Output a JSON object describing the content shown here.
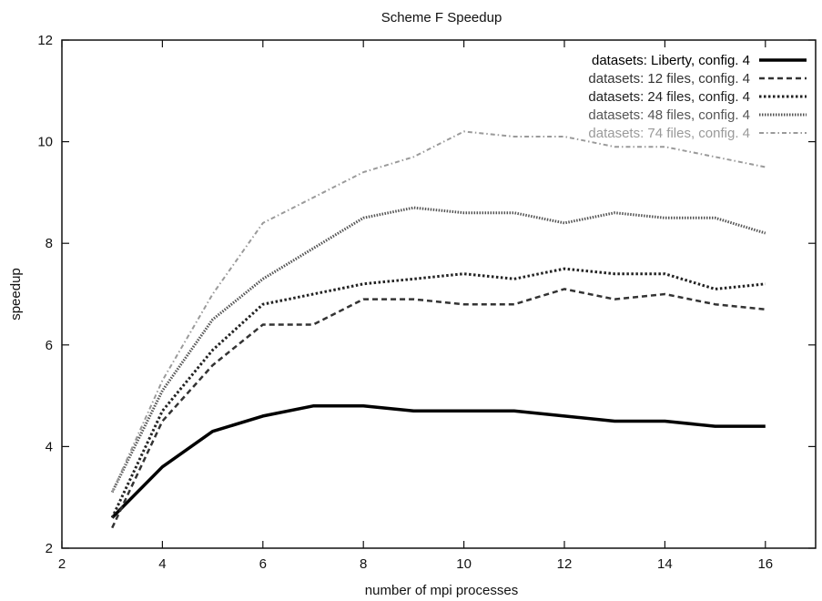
{
  "chart_data": {
    "type": "line",
    "title": "Scheme F Speedup",
    "xlabel": "number of mpi processes",
    "ylabel": "speedup",
    "xlim": [
      2,
      17
    ],
    "ylim": [
      2,
      12
    ],
    "xticks": [
      "2",
      "4",
      "6",
      "8",
      "10",
      "12",
      "14",
      "16"
    ],
    "yticks": [
      "2",
      "4",
      "6",
      "8",
      "10",
      "12"
    ],
    "grid": false,
    "legend_position": "top-right",
    "x": [
      3,
      4,
      5,
      6,
      7,
      8,
      9,
      10,
      11,
      12,
      13,
      14,
      15,
      16
    ],
    "series": [
      {
        "name": "datasets: Liberty, config. 4",
        "color": "#000000",
        "style": "solid",
        "values": [
          2.6,
          3.6,
          4.3,
          4.6,
          4.8,
          4.8,
          4.7,
          4.7,
          4.7,
          4.6,
          4.5,
          4.5,
          4.4,
          4.4
        ]
      },
      {
        "name": "datasets: 12 files, config. 4",
        "color": "#333333",
        "style": "dashed",
        "values": [
          2.4,
          4.5,
          5.6,
          6.4,
          6.4,
          6.9,
          6.9,
          6.8,
          6.8,
          7.1,
          6.9,
          7.0,
          6.8,
          6.7
        ]
      },
      {
        "name": "datasets: 24 files, config. 4",
        "color": "#222222",
        "style": "dotted",
        "values": [
          2.6,
          4.7,
          5.9,
          6.8,
          7.0,
          7.2,
          7.3,
          7.4,
          7.3,
          7.5,
          7.4,
          7.4,
          7.1,
          7.2
        ]
      },
      {
        "name": "datasets: 48 files, config. 4",
        "color": "#555555",
        "style": "finedot",
        "values": [
          3.1,
          5.1,
          6.5,
          7.3,
          7.9,
          8.5,
          8.7,
          8.6,
          8.6,
          8.4,
          8.6,
          8.5,
          8.5,
          8.2
        ]
      },
      {
        "name": "datasets: 74 files, config. 4",
        "color": "#9a9a9a",
        "style": "dashdot",
        "values": [
          3.1,
          5.3,
          7.0,
          8.4,
          8.9,
          9.4,
          9.7,
          10.2,
          10.1,
          10.1,
          9.9,
          9.9,
          9.7,
          9.5
        ]
      }
    ]
  }
}
